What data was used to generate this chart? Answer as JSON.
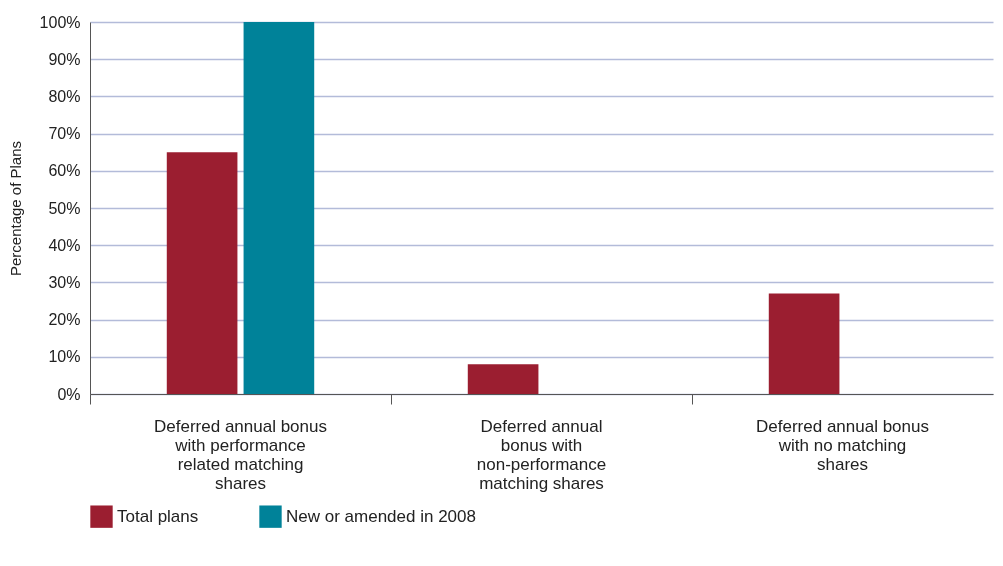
{
  "chart_data": {
    "type": "bar",
    "ylabel": "Percentage of Plans",
    "categories": [
      "Deferred annual bonus with performance related matching shares",
      "Deferred annual bonus with non-performance matching shares",
      "Deferred annual bonus with no matching shares"
    ],
    "series": [
      {
        "name": "Total plans",
        "color": "#9b1e30",
        "values": [
          65,
          8,
          27
        ]
      },
      {
        "name": "New or amended in 2008",
        "color": "#008299",
        "values": [
          100,
          null,
          null
        ]
      }
    ],
    "ylim": [
      0,
      100
    ],
    "yticks": [
      {
        "value": 0,
        "label": "0%"
      },
      {
        "value": 10,
        "label": "10%"
      },
      {
        "value": 20,
        "label": "20%"
      },
      {
        "value": 30,
        "label": "30%"
      },
      {
        "value": 40,
        "label": "40%"
      },
      {
        "value": 50,
        "label": "50%"
      },
      {
        "value": 60,
        "label": "60%"
      },
      {
        "value": 70,
        "label": "70%"
      },
      {
        "value": 80,
        "label": "80%"
      },
      {
        "value": 90,
        "label": "90%"
      },
      {
        "value": 100,
        "label": "100%"
      }
    ],
    "grid": "y",
    "legend": "bottom left"
  }
}
